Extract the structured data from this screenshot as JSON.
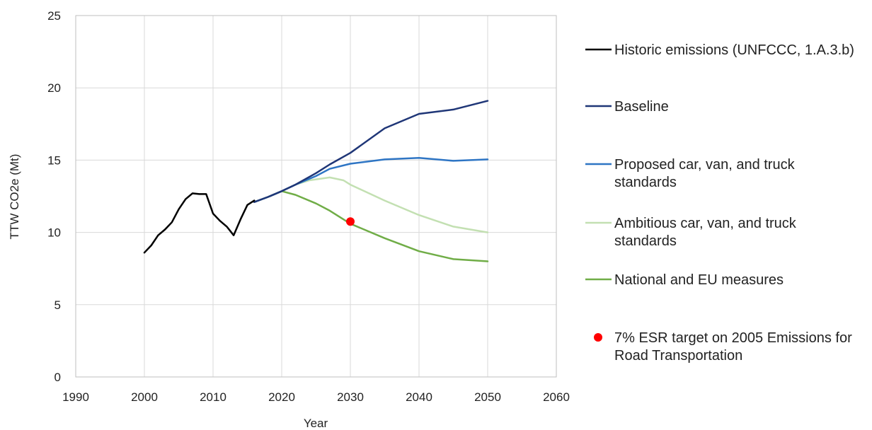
{
  "chart_data": {
    "type": "line",
    "title": "",
    "xlabel": "Year",
    "ylabel": "TTW CO2e (Mt)",
    "xlim": [
      1990,
      2060
    ],
    "ylim": [
      0,
      25
    ],
    "xticks": [
      "1990",
      "2000",
      "2010",
      "2020",
      "2030",
      "2040",
      "2050",
      "2060"
    ],
    "yticks": [
      "0",
      "5",
      "10",
      "15",
      "20",
      "25"
    ],
    "grid": true,
    "legend_position": "right",
    "series": [
      {
        "name": "Historic emissions (UNFCCC, 1.A.3.b)",
        "color": "#000000",
        "points": [
          [
            2000,
            8.6
          ],
          [
            2001,
            9.1
          ],
          [
            2002,
            9.8
          ],
          [
            2003,
            10.2
          ],
          [
            2004,
            10.7
          ],
          [
            2005,
            11.6
          ],
          [
            2006,
            12.3
          ],
          [
            2007,
            12.7
          ],
          [
            2008,
            12.65
          ],
          [
            2009,
            12.65
          ],
          [
            2010,
            11.3
          ],
          [
            2011,
            10.8
          ],
          [
            2012,
            10.4
          ],
          [
            2013,
            9.8
          ],
          [
            2014,
            10.9
          ],
          [
            2015,
            11.9
          ],
          [
            2016,
            12.2
          ]
        ]
      },
      {
        "name": "Baseline",
        "color": "#1f3677",
        "points": [
          [
            2016,
            12.1
          ],
          [
            2018,
            12.45
          ],
          [
            2020,
            12.85
          ],
          [
            2022,
            13.3
          ],
          [
            2025,
            14.1
          ],
          [
            2027,
            14.7
          ],
          [
            2030,
            15.5
          ],
          [
            2035,
            17.2
          ],
          [
            2040,
            18.2
          ],
          [
            2045,
            18.5
          ],
          [
            2050,
            19.1
          ]
        ]
      },
      {
        "name": "Proposed car, van, and truck standards",
        "color": "#2e75c4",
        "points": [
          [
            2016,
            12.1
          ],
          [
            2018,
            12.45
          ],
          [
            2020,
            12.85
          ],
          [
            2022,
            13.3
          ],
          [
            2025,
            13.9
          ],
          [
            2027,
            14.4
          ],
          [
            2030,
            14.75
          ],
          [
            2035,
            15.05
          ],
          [
            2040,
            15.15
          ],
          [
            2045,
            14.95
          ],
          [
            2050,
            15.05
          ]
        ]
      },
      {
        "name": "Ambitious car, van, and truck standards",
        "color": "#c3e0b2",
        "points": [
          [
            2016,
            12.1
          ],
          [
            2018,
            12.45
          ],
          [
            2020,
            12.85
          ],
          [
            2022,
            13.3
          ],
          [
            2024,
            13.6
          ],
          [
            2027,
            13.8
          ],
          [
            2029,
            13.6
          ],
          [
            2030,
            13.3
          ],
          [
            2035,
            12.2
          ],
          [
            2040,
            11.2
          ],
          [
            2045,
            10.4
          ],
          [
            2050,
            10.0
          ]
        ]
      },
      {
        "name": "National and EU measures",
        "color": "#70ad47",
        "points": [
          [
            2016,
            12.1
          ],
          [
            2018,
            12.45
          ],
          [
            2020,
            12.85
          ],
          [
            2022,
            12.6
          ],
          [
            2025,
            12.0
          ],
          [
            2027,
            11.5
          ],
          [
            2030,
            10.6
          ],
          [
            2035,
            9.6
          ],
          [
            2040,
            8.7
          ],
          [
            2045,
            8.15
          ],
          [
            2050,
            8.0
          ]
        ]
      }
    ],
    "markers": [
      {
        "name": "7% ESR target on 2005 Emissions for Road Transportation",
        "color": "#ff0000",
        "x": 2030,
        "y": 10.75
      }
    ],
    "legend": [
      {
        "kind": "line",
        "color": "#000000",
        "lines": [
          "Historic emissions (UNFCCC, 1.A.3.b)"
        ]
      },
      {
        "kind": "line",
        "color": "#1f3677",
        "lines": [
          "Baseline"
        ]
      },
      {
        "kind": "line",
        "color": "#2e75c4",
        "lines": [
          "Proposed car, van, and truck",
          "standards"
        ]
      },
      {
        "kind": "line",
        "color": "#c3e0b2",
        "lines": [
          "Ambitious car, van, and truck",
          "standards"
        ]
      },
      {
        "kind": "line",
        "color": "#70ad47",
        "lines": [
          "National and EU measures"
        ]
      },
      {
        "kind": "dot",
        "color": "#ff0000",
        "lines": [
          "7% ESR target on 2005 Emissions for",
          "Road Transportation"
        ]
      }
    ]
  }
}
